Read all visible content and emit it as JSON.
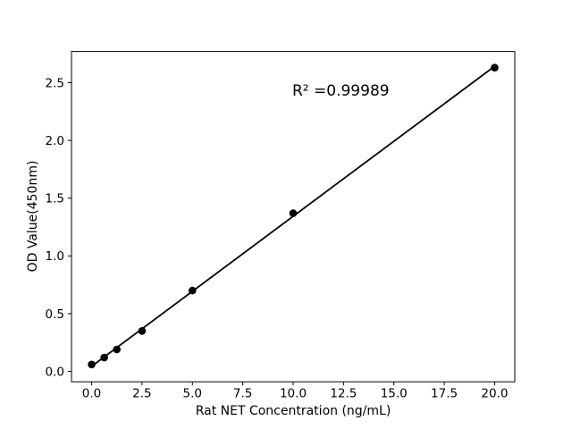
{
  "figure": {
    "background_color": "#ffffff",
    "text_color": "#000000"
  },
  "chart_data": {
    "type": "scatter",
    "title": "",
    "xlabel": "Rat NET Concentration (ng/mL)",
    "ylabel": "OD Value(450nm)",
    "annotation": "R² =0.99989",
    "r_squared": 0.99989,
    "x": [
      0,
      0.625,
      1.25,
      2.5,
      5,
      10,
      20
    ],
    "y": [
      0.06,
      0.12,
      0.19,
      0.35,
      0.7,
      1.37,
      2.63
    ],
    "fit_line": {
      "x1": 0,
      "y1": 0.044,
      "x2": 20,
      "y2": 2.642
    },
    "xlim": [
      -1,
      21
    ],
    "ylim": [
      -0.09,
      2.77
    ],
    "xticks": {
      "values": [
        0,
        2.5,
        5,
        7.5,
        10,
        12.5,
        15,
        17.5,
        20
      ],
      "labels": [
        "0.0",
        "2.5",
        "5.0",
        "7.5",
        "10.0",
        "12.5",
        "15.0",
        "17.5",
        "20.0"
      ]
    },
    "yticks": {
      "values": [
        0,
        0.5,
        1.0,
        1.5,
        2.0,
        2.5
      ],
      "labels": [
        "0.0",
        "0.5",
        "1.0",
        "1.5",
        "2.0",
        "2.5"
      ]
    },
    "grid": false,
    "legend": "none",
    "marker_color": "#000000",
    "line_color": "#000000",
    "axis_color": "#000000"
  }
}
